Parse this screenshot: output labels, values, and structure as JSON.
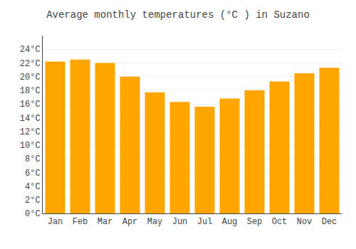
{
  "chart_data": {
    "type": "bar",
    "title": "Average monthly temperatures (°C ) in Suzano",
    "categories": [
      "Jan",
      "Feb",
      "Mar",
      "Apr",
      "May",
      "Jun",
      "Jul",
      "Aug",
      "Sep",
      "Oct",
      "Nov",
      "Dec"
    ],
    "values": [
      22.2,
      22.5,
      22.0,
      20.0,
      17.7,
      16.3,
      15.6,
      16.8,
      18.0,
      19.3,
      20.5,
      21.3
    ],
    "color": "#FFA500",
    "ylim": [
      0,
      26
    ],
    "yticks": [
      {
        "value": 0,
        "label": "0°C"
      },
      {
        "value": 2,
        "label": "2°C"
      },
      {
        "value": 4,
        "label": "4°C"
      },
      {
        "value": 6,
        "label": "6°C"
      },
      {
        "value": 8,
        "label": "8°C"
      },
      {
        "value": 10,
        "label": "10°C"
      },
      {
        "value": 12,
        "label": "12°C"
      },
      {
        "value": 14,
        "label": "14°C"
      },
      {
        "value": 16,
        "label": "16°C"
      },
      {
        "value": 18,
        "label": "18°C"
      },
      {
        "value": 20,
        "label": "20°C"
      },
      {
        "value": 22,
        "label": "22°C"
      },
      {
        "value": 24,
        "label": "24°C"
      }
    ],
    "grid": true
  }
}
